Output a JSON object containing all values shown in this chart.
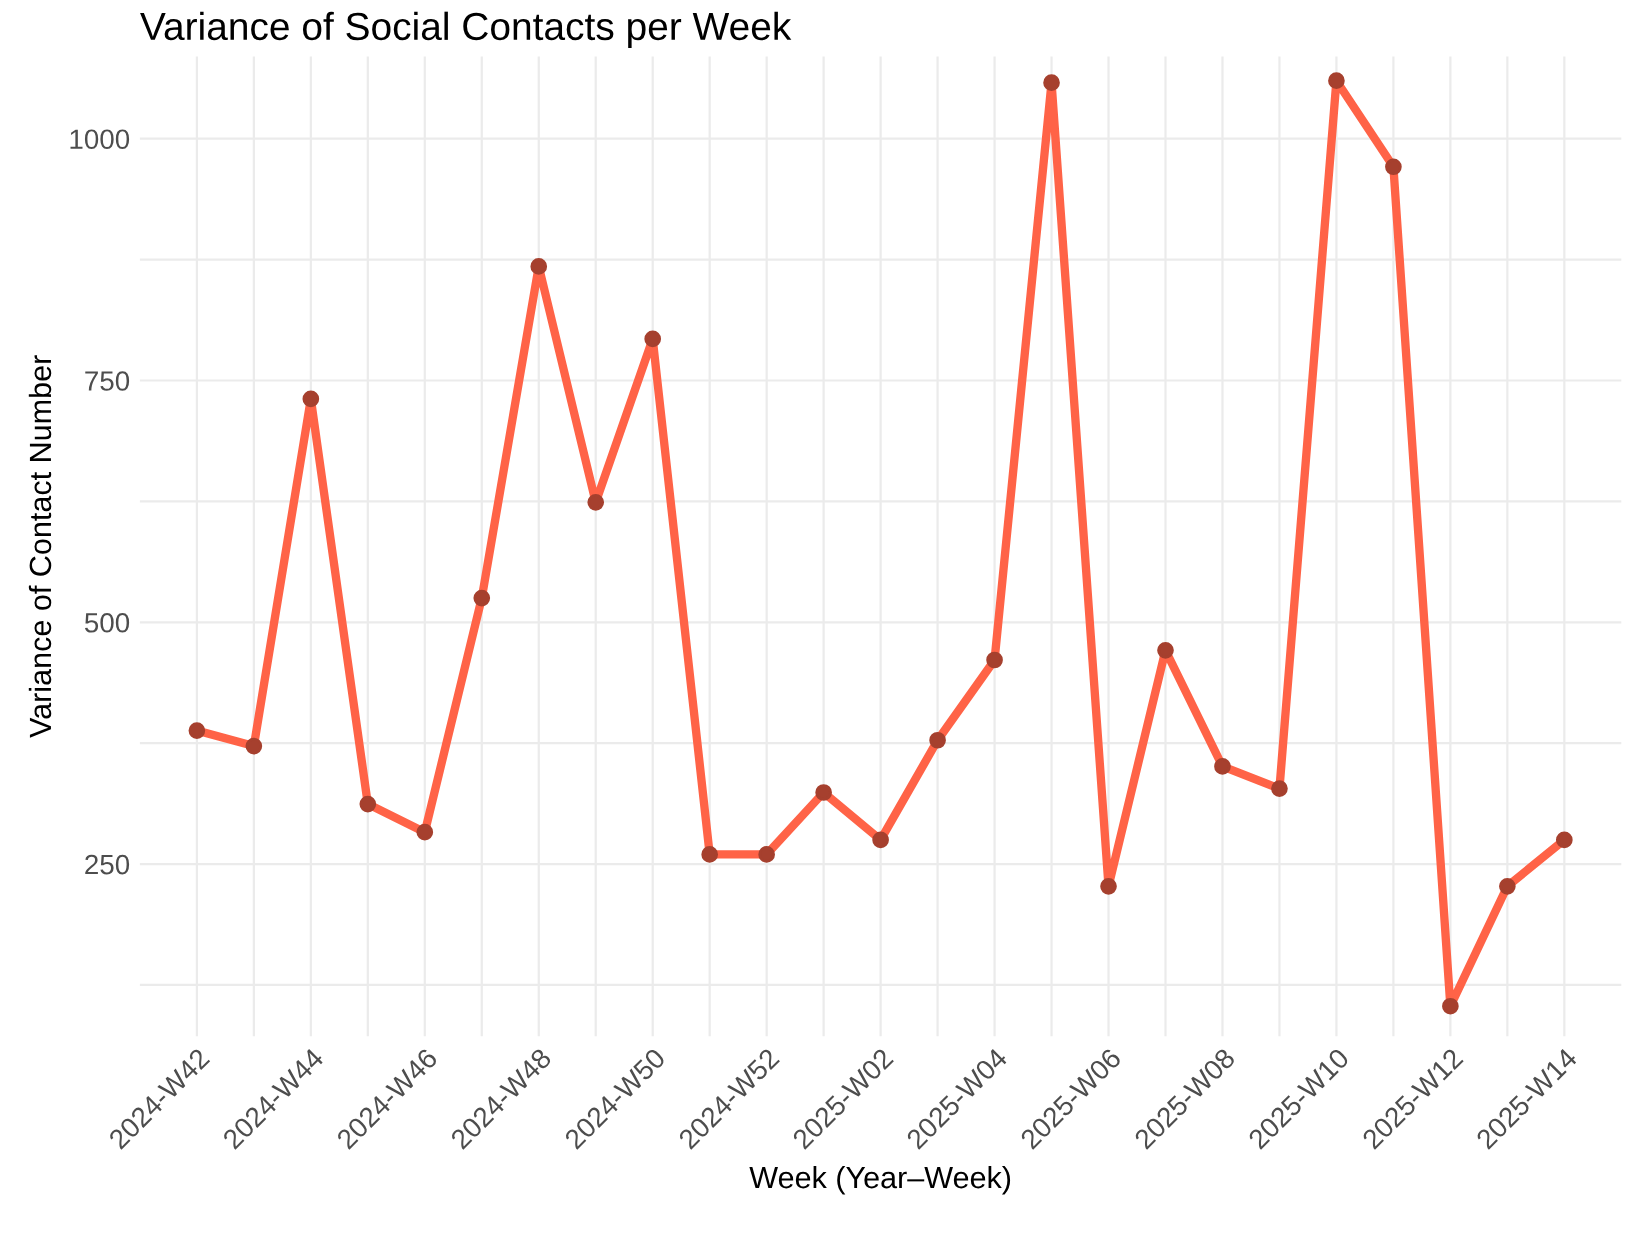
{
  "chart_data": {
    "type": "line",
    "title": "Variance of Social Contacts per Week",
    "xlabel": "Week (Year–Week)",
    "ylabel": "Variance of Contact Number",
    "categories": [
      "2024-W42",
      null,
      "2024-W44",
      null,
      "2024-W46",
      null,
      "2024-W48",
      null,
      "2024-W50",
      null,
      "2024-W52",
      null,
      "2025-W02",
      null,
      "2025-W04",
      null,
      "2025-W06",
      null,
      "2025-W08",
      null,
      "2025-W10",
      null,
      "2025-W12",
      null,
      "2025-W14"
    ],
    "series": [
      {
        "color": "#ff6347",
        "values": [
          388,
          372,
          731,
          312,
          283,
          525,
          868,
          624,
          793,
          260,
          260,
          324,
          275,
          378,
          461,
          1058,
          227,
          471,
          351,
          328,
          1060,
          971,
          103,
          227,
          275
        ]
      }
    ],
    "ylim": [
      72,
      1085
    ],
    "yticks": [
      {
        "value": 125,
        "label": null
      },
      250,
      {
        "value": 375,
        "label": null
      },
      500,
      {
        "value": 625,
        "label": null
      },
      750,
      {
        "value": 875,
        "label": null
      },
      1000
    ],
    "grid": true,
    "marker": "circle",
    "line_style": "solid"
  }
}
